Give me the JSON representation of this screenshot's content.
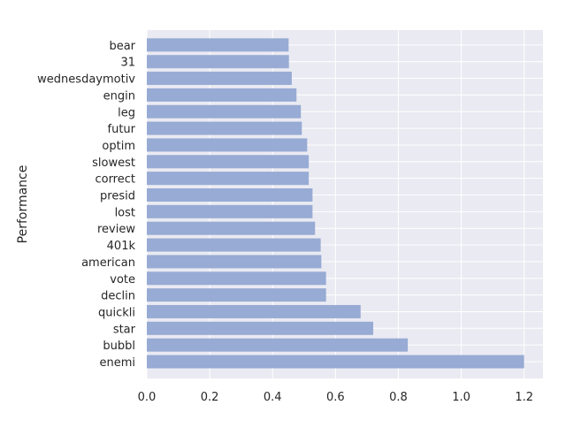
{
  "chart_data": {
    "type": "bar",
    "orientation": "horizontal",
    "title": "",
    "xlabel": "",
    "ylabel": "Performance",
    "grid": true,
    "xlim": [
      0,
      1.26
    ],
    "xticks": [
      "0.0",
      "0.2",
      "0.4",
      "0.6",
      "0.8",
      "1.0",
      "1.2"
    ],
    "categories": [
      "enemi",
      "bubbl",
      "star",
      "quickli",
      "declin",
      "vote",
      "american",
      "401k",
      "review",
      "lost",
      "presid",
      "correct",
      "slowest",
      "optim",
      "futur",
      "leg",
      "engin",
      "wednesdaymotiv",
      "31",
      "bear"
    ],
    "values": [
      1.2,
      0.83,
      0.72,
      0.68,
      0.57,
      0.57,
      0.555,
      0.553,
      0.535,
      0.527,
      0.527,
      0.515,
      0.515,
      0.51,
      0.493,
      0.49,
      0.476,
      0.461,
      0.452,
      0.451
    ],
    "colors": {
      "background": "#EAEAF2",
      "grid": "#FFFFFF",
      "bar": "#97ABD4"
    }
  }
}
